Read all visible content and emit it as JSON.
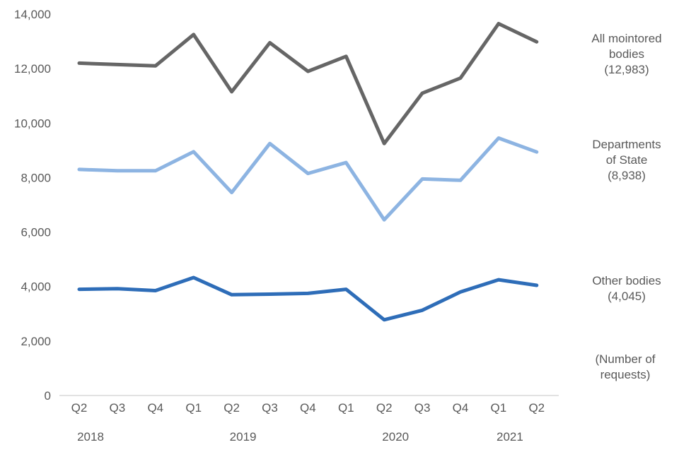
{
  "chart_data": {
    "type": "line",
    "quarters": [
      "Q2",
      "Q3",
      "Q4",
      "Q1",
      "Q2",
      "Q3",
      "Q4",
      "Q1",
      "Q2",
      "Q3",
      "Q4",
      "Q1",
      "Q2"
    ],
    "years": [
      {
        "label": "2018",
        "index": 0
      },
      {
        "label": "2019",
        "index": 4
      },
      {
        "label": "2020",
        "index": 8
      },
      {
        "label": "2021",
        "index": 11
      }
    ],
    "y_ticks": [
      "0",
      "2,000",
      "4,000",
      "6,000",
      "8,000",
      "10,000",
      "12,000",
      "14,000"
    ],
    "ylim": [
      0,
      14000
    ],
    "grid": false,
    "series": [
      {
        "color": "#666666",
        "values": [
          12200,
          12150,
          12100,
          13250,
          11150,
          12950,
          11900,
          12450,
          9250,
          11100,
          11650,
          13650,
          12983
        ],
        "label_lines": [
          "All mointored",
          "bodies",
          "(12,983)"
        ]
      },
      {
        "color": "#8db4e2",
        "values": [
          8300,
          8250,
          8250,
          8950,
          7450,
          9250,
          8150,
          8550,
          6450,
          7950,
          7900,
          9450,
          8938
        ],
        "label_lines": [
          "Departments",
          "of State",
          "(8,938)"
        ]
      },
      {
        "color": "#2e6db8",
        "values": [
          3900,
          3920,
          3850,
          4330,
          3700,
          3720,
          3750,
          3900,
          2780,
          3130,
          3800,
          4250,
          4045
        ],
        "label_lines": [
          "Other bodies",
          "(4,045)"
        ]
      }
    ],
    "unit_note": [
      "(Number of",
      "requests)"
    ]
  }
}
